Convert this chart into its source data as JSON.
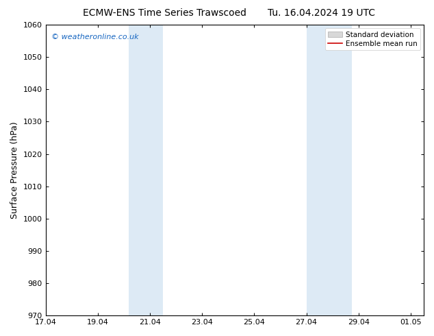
{
  "title_left": "ECMW-ENS Time Series Trawscoed",
  "title_right": "Tu. 16.04.2024 19 UTC",
  "ylabel": "Surface Pressure (hPa)",
  "ylim": [
    970,
    1060
  ],
  "yticks": [
    970,
    980,
    990,
    1000,
    1010,
    1020,
    1030,
    1040,
    1050,
    1060
  ],
  "xtick_labels": [
    "17.04",
    "19.04",
    "21.04",
    "23.04",
    "25.04",
    "27.04",
    "29.04",
    "01.05"
  ],
  "xtick_positions": [
    0,
    2,
    4,
    6,
    8,
    10,
    12,
    14
  ],
  "xlim": [
    0,
    14.5
  ],
  "shaded_regions": [
    {
      "x_start": 3.2,
      "x_end": 4.5,
      "color": "#ddeaf5"
    },
    {
      "x_start": 10.0,
      "x_end": 11.75,
      "color": "#ddeaf5"
    }
  ],
  "watermark_text": "© weatheronline.co.uk",
  "watermark_color": "#1565C0",
  "background_color": "#ffffff",
  "legend_std_label": "Standard deviation",
  "legend_mean_label": "Ensemble mean run",
  "legend_std_facecolor": "#d8d8d8",
  "legend_std_edgecolor": "#aaaaaa",
  "legend_mean_color": "#cc0000",
  "title_fontsize": 10,
  "ylabel_fontsize": 9,
  "tick_fontsize": 8,
  "watermark_fontsize": 8,
  "legend_fontsize": 7.5
}
